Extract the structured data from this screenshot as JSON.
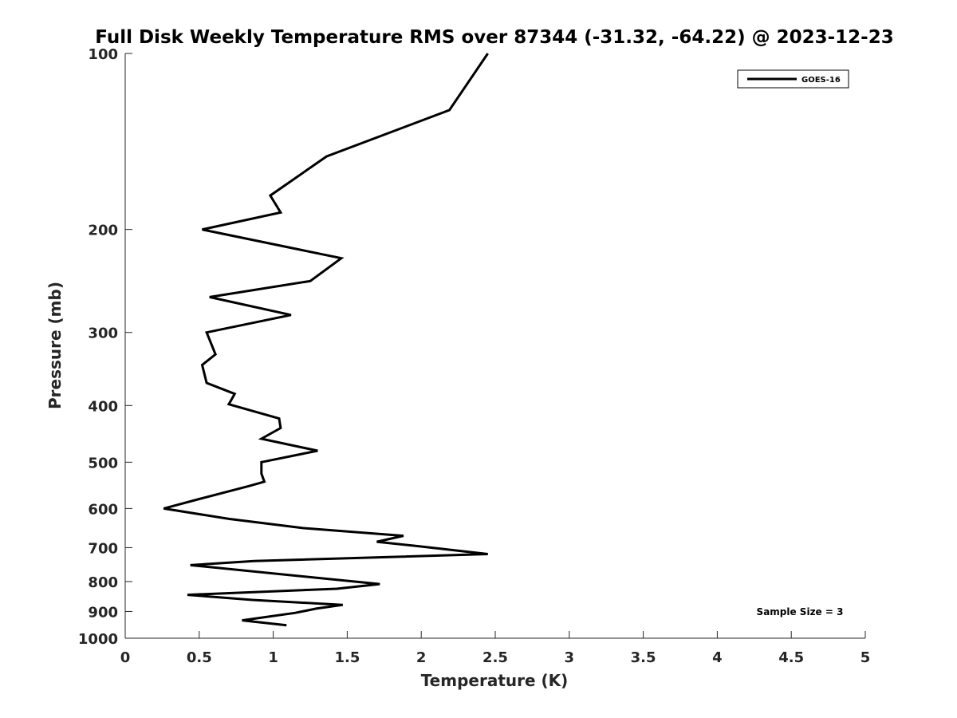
{
  "chart_data": {
    "type": "line",
    "title": "Full Disk Weekly Temperature RMS over 87344 (-31.32, -64.22) @ 2023-12-23",
    "xlabel": "Temperature (K)",
    "ylabel": "Pressure (mb)",
    "xlim": [
      0,
      5
    ],
    "ylim": [
      100,
      1000
    ],
    "y_scale": "log",
    "y_reversed": true,
    "x_ticks": [
      "0",
      "0.5",
      "1",
      "1.5",
      "2",
      "2.5",
      "3",
      "3.5",
      "4",
      "4.5",
      "5"
    ],
    "y_ticks": [
      "100",
      "200",
      "300",
      "400",
      "500",
      "600",
      "700",
      "800",
      "900",
      "1000"
    ],
    "grid": false,
    "legend_position": "top-right",
    "annotation": "Sample Size = 3",
    "series": [
      {
        "name": "GOES-16",
        "color": "#000000",
        "points": [
          [
            2.45,
            100
          ],
          [
            2.19,
            125
          ],
          [
            1.36,
            150
          ],
          [
            0.98,
            175
          ],
          [
            1.05,
            187
          ],
          [
            0.52,
            200
          ],
          [
            1.46,
            224
          ],
          [
            1.25,
            245
          ],
          [
            0.57,
            261
          ],
          [
            1.12,
            280
          ],
          [
            0.55,
            300
          ],
          [
            0.61,
            327
          ],
          [
            0.52,
            341
          ],
          [
            0.55,
            366
          ],
          [
            0.74,
            382
          ],
          [
            0.7,
            398
          ],
          [
            1.04,
            421
          ],
          [
            1.05,
            437
          ],
          [
            0.92,
            456
          ],
          [
            1.3,
            478
          ],
          [
            0.92,
            500
          ],
          [
            0.92,
            523
          ],
          [
            0.94,
            540
          ],
          [
            0.84,
            549
          ],
          [
            0.5,
            578
          ],
          [
            0.26,
            600
          ],
          [
            0.7,
            625
          ],
          [
            1.2,
            648
          ],
          [
            1.88,
            668
          ],
          [
            1.7,
            684
          ],
          [
            1.98,
            696
          ],
          [
            2.45,
            718
          ],
          [
            0.87,
            738
          ],
          [
            0.44,
            750
          ],
          [
            1.72,
            808
          ],
          [
            1.43,
            823
          ],
          [
            0.42,
            843
          ],
          [
            0.86,
            860
          ],
          [
            1.47,
            877
          ],
          [
            1.29,
            890
          ],
          [
            1.15,
            905
          ],
          [
            0.79,
            932
          ],
          [
            1.09,
            950
          ]
        ]
      }
    ]
  }
}
